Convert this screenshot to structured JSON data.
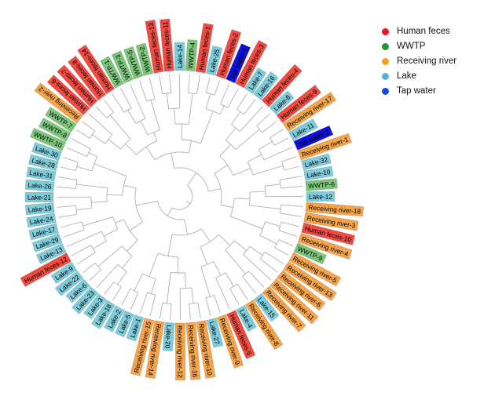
{
  "legend": {
    "items": [
      {
        "label": "Human feces",
        "dot_color": "#e8152b"
      },
      {
        "label": "WWTP",
        "dot_color": "#1f9434"
      },
      {
        "label": "Receiving river",
        "dot_color": "#f0a02b"
      },
      {
        "label": "Lake",
        "dot_color": "#55b0d4"
      },
      {
        "label": "Tap water",
        "dot_color": "#1d44dd"
      }
    ]
  },
  "chart_data": {
    "type": "circular-dendrogram",
    "title": "",
    "legend_position": "top-right",
    "grid": false,
    "layout": {
      "start_angle_deg": -57,
      "direction": "clockwise"
    },
    "group_label_colors": {
      "Human feces": "#ef4b42",
      "WWTP": "#7cc67c",
      "Receiving river": "#f4a44c",
      "Lake": "#7ecbd9",
      "Tap water": "#0f11d6"
    },
    "leaves": [
      {
        "name": "WWTP-7",
        "group": "WWTP"
      },
      {
        "name": "Receiving river-2",
        "group": "Receiving river"
      },
      {
        "name": "Human feces-6",
        "group": "Human feces"
      },
      {
        "name": "Human feces-7",
        "group": "Human feces"
      },
      {
        "name": "Human feces-8",
        "group": "Human feces"
      },
      {
        "name": "Human feces-14",
        "group": "Human feces"
      },
      {
        "name": "WWTP-1",
        "group": "WWTP"
      },
      {
        "name": "WWTP-3",
        "group": "WWTP"
      },
      {
        "name": "WWTP-5",
        "group": "WWTP"
      },
      {
        "name": "WWTP-2",
        "group": "WWTP"
      },
      {
        "name": "Human feces-13",
        "group": "Human feces"
      },
      {
        "name": "Human feces-11",
        "group": "Human feces"
      },
      {
        "name": "Lake-14",
        "group": "Lake"
      },
      {
        "name": "WWTP-4",
        "group": "WWTP"
      },
      {
        "name": "Human feces-1",
        "group": "Human feces"
      },
      {
        "name": "Lake-25",
        "group": "Lake"
      },
      {
        "name": "Human feces-2",
        "group": "Human feces"
      },
      {
        "name": "Tap water-1",
        "group": "Tap water"
      },
      {
        "name": "Human feces-3",
        "group": "Human feces"
      },
      {
        "name": "Lake-7",
        "group": "Lake"
      },
      {
        "name": "Lake-16",
        "group": "Lake"
      },
      {
        "name": "Human feces-4",
        "group": "Human feces"
      },
      {
        "name": "Lake-8",
        "group": "Lake"
      },
      {
        "name": "Human feces-9",
        "group": "Human feces"
      },
      {
        "name": "Receiving river-17",
        "group": "Receiving river"
      },
      {
        "name": "Lake-11",
        "group": "Lake"
      },
      {
        "name": "Tap water-2",
        "group": "Tap water"
      },
      {
        "name": "Receiving river-1",
        "group": "Receiving river"
      },
      {
        "name": "Lake-32",
        "group": "Lake"
      },
      {
        "name": "Lake-10",
        "group": "Lake"
      },
      {
        "name": "WWTP-6",
        "group": "WWTP"
      },
      {
        "name": "Lake-12",
        "group": "Lake"
      },
      {
        "name": "Receiving river-18",
        "group": "Receiving river"
      },
      {
        "name": "Receiving river-3",
        "group": "Receiving river"
      },
      {
        "name": "Human feces-10",
        "group": "Human feces"
      },
      {
        "name": "Receiving river-4",
        "group": "Receiving river"
      },
      {
        "name": "WWTP-9",
        "group": "WWTP"
      },
      {
        "name": "Receiving river-5",
        "group": "Receiving river"
      },
      {
        "name": "Receiving river-13",
        "group": "Receiving river"
      },
      {
        "name": "Receiving river-6",
        "group": "Receiving river"
      },
      {
        "name": "Receiving river-11",
        "group": "Receiving river"
      },
      {
        "name": "Receiving river-7",
        "group": "Receiving river"
      },
      {
        "name": "Lake-15",
        "group": "Lake"
      },
      {
        "name": "Receiving river-8",
        "group": "Receiving river"
      },
      {
        "name": "Lake-4",
        "group": "Lake"
      },
      {
        "name": "Human feces-5",
        "group": "Human feces"
      },
      {
        "name": "Receiving river-9",
        "group": "Receiving river"
      },
      {
        "name": "Lake-27",
        "group": "Lake"
      },
      {
        "name": "Receiving river-10",
        "group": "Receiving river"
      },
      {
        "name": "Receiving river-16",
        "group": "Receiving river"
      },
      {
        "name": "Receiving river-12",
        "group": "Receiving river"
      },
      {
        "name": "Lake-20",
        "group": "Lake"
      },
      {
        "name": "Receiving river-14",
        "group": "Receiving river"
      },
      {
        "name": "Receiving river-15",
        "group": "Receiving river"
      },
      {
        "name": "Lake-1",
        "group": "Lake"
      },
      {
        "name": "Lake-5",
        "group": "Lake"
      },
      {
        "name": "Lake-2",
        "group": "Lake"
      },
      {
        "name": "Lake-18",
        "group": "Lake"
      },
      {
        "name": "Lake-3",
        "group": "Lake"
      },
      {
        "name": "Lake-23",
        "group": "Lake"
      },
      {
        "name": "Lake-6",
        "group": "Lake"
      },
      {
        "name": "Lake-22",
        "group": "Lake"
      },
      {
        "name": "Lake-9",
        "group": "Lake"
      },
      {
        "name": "Human feces-12",
        "group": "Human feces"
      },
      {
        "name": "Lake-13",
        "group": "Lake"
      },
      {
        "name": "Lake-29",
        "group": "Lake"
      },
      {
        "name": "Lake-17",
        "group": "Lake"
      },
      {
        "name": "Lake-24",
        "group": "Lake"
      },
      {
        "name": "Lake-19",
        "group": "Lake"
      },
      {
        "name": "Lake-21",
        "group": "Lake"
      },
      {
        "name": "Lake-26",
        "group": "Lake"
      },
      {
        "name": "Lake-31",
        "group": "Lake"
      },
      {
        "name": "Lake-28",
        "group": "Lake"
      },
      {
        "name": "Lake-30",
        "group": "Lake"
      },
      {
        "name": "WWTP-10",
        "group": "WWTP"
      },
      {
        "name": "WWTP-8",
        "group": "WWTP"
      }
    ]
  }
}
